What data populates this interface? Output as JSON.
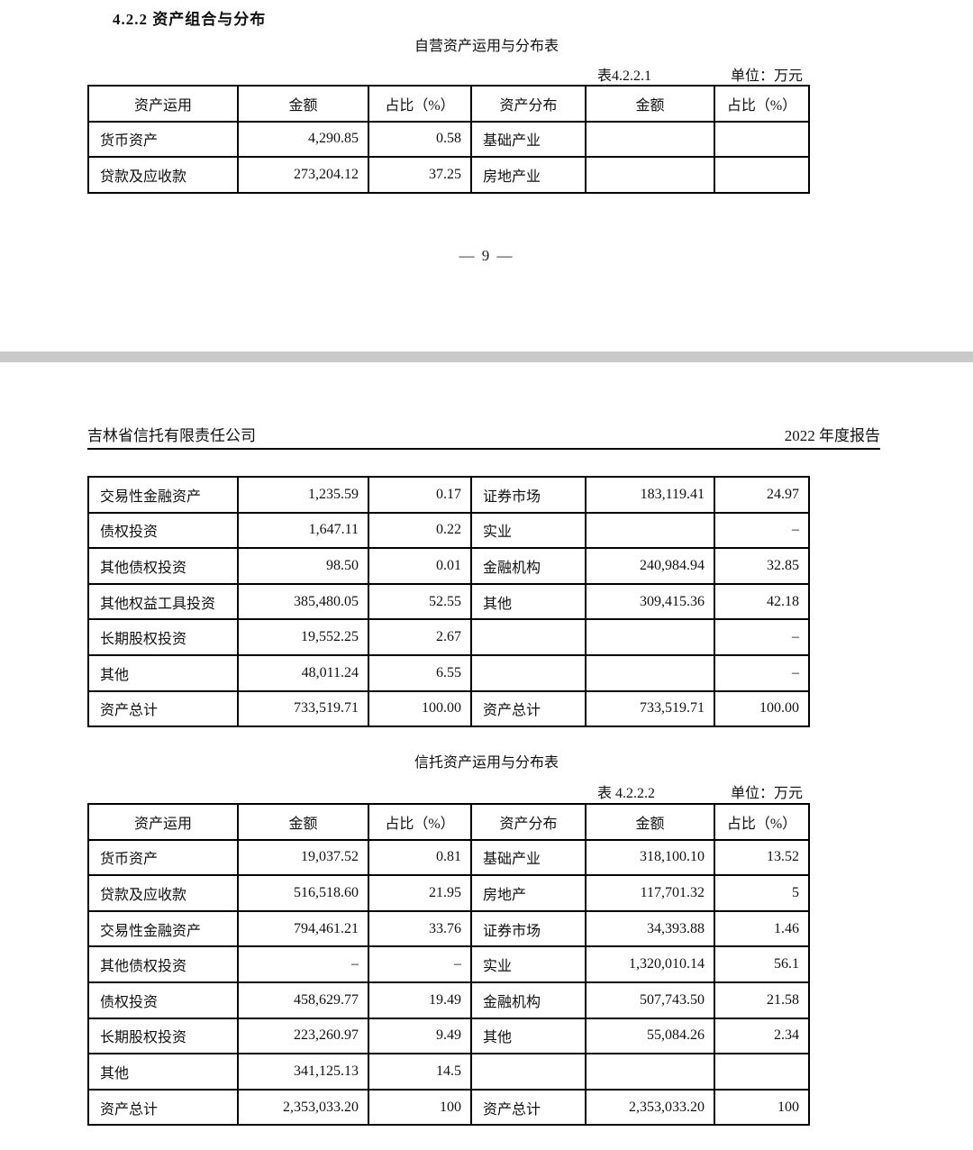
{
  "page1": {
    "section_heading": "4.2.2 资产组合与分布",
    "table_caption": "自营资产运用与分布表",
    "table_label": "表4.2.2.1",
    "unit_label": "单位：万元",
    "page_number": "— 9 —"
  },
  "page2": {
    "header_left": "吉林省信托有限责任公司",
    "header_right": "2022 年度报告",
    "table2_caption": "信托资产运用与分布表",
    "table2_label": "表 4.2.2.2",
    "unit_label": "单位：万元"
  },
  "columns": [
    "资产运用",
    "金额",
    "占比（%）",
    "资产分布",
    "金额",
    "占比（%）"
  ],
  "proprietary_assets_table": {
    "rows": [
      [
        "货币资产",
        "4,290.85",
        "0.58",
        "基础产业",
        "",
        ""
      ],
      [
        "贷款及应收款",
        "273,204.12",
        "37.25",
        "房地产业",
        "",
        ""
      ]
    ]
  },
  "proprietary_assets_table_continued": {
    "rows": [
      [
        "交易性金融资产",
        "1,235.59",
        "0.17",
        "证券市场",
        "183,119.41",
        "24.97"
      ],
      [
        "债权投资",
        "1,647.11",
        "0.22",
        "实业",
        "",
        "–"
      ],
      [
        "其他债权投资",
        "98.50",
        "0.01",
        "金融机构",
        "240,984.94",
        "32.85"
      ],
      [
        "其他权益工具投资",
        "385,480.05",
        "52.55",
        "其他",
        "309,415.36",
        "42.18"
      ],
      [
        "长期股权投资",
        "19,552.25",
        "2.67",
        "",
        "",
        "–"
      ],
      [
        "其他",
        "48,011.24",
        "6.55",
        "",
        "",
        "–"
      ],
      [
        "资产总计",
        "733,519.71",
        "100.00",
        "资产总计",
        "733,519.71",
        "100.00"
      ]
    ]
  },
  "trust_assets_table": {
    "rows": [
      [
        "货币资产",
        "19,037.52",
        "0.81",
        "基础产业",
        "318,100.10",
        "13.52"
      ],
      [
        "贷款及应收款",
        "516,518.60",
        "21.95",
        "房地产",
        "117,701.32",
        "5"
      ],
      [
        "交易性金融资产",
        "794,461.21",
        "33.76",
        "证券市场",
        "34,393.88",
        "1.46"
      ],
      [
        "其他债权投资",
        "–",
        "–",
        "实业",
        "1,320,010.14",
        "56.1"
      ],
      [
        "债权投资",
        "458,629.77",
        "19.49",
        "金融机构",
        "507,743.50",
        "21.58"
      ],
      [
        "长期股权投资",
        "223,260.97",
        "9.49",
        "其他",
        "55,084.26",
        "2.34"
      ],
      [
        "其他",
        "341,125.13",
        "14.5",
        "",
        "",
        ""
      ],
      [
        "资产总计",
        "2,353,033.20",
        "100",
        "资产总计",
        "2,353,033.20",
        "100"
      ]
    ]
  }
}
